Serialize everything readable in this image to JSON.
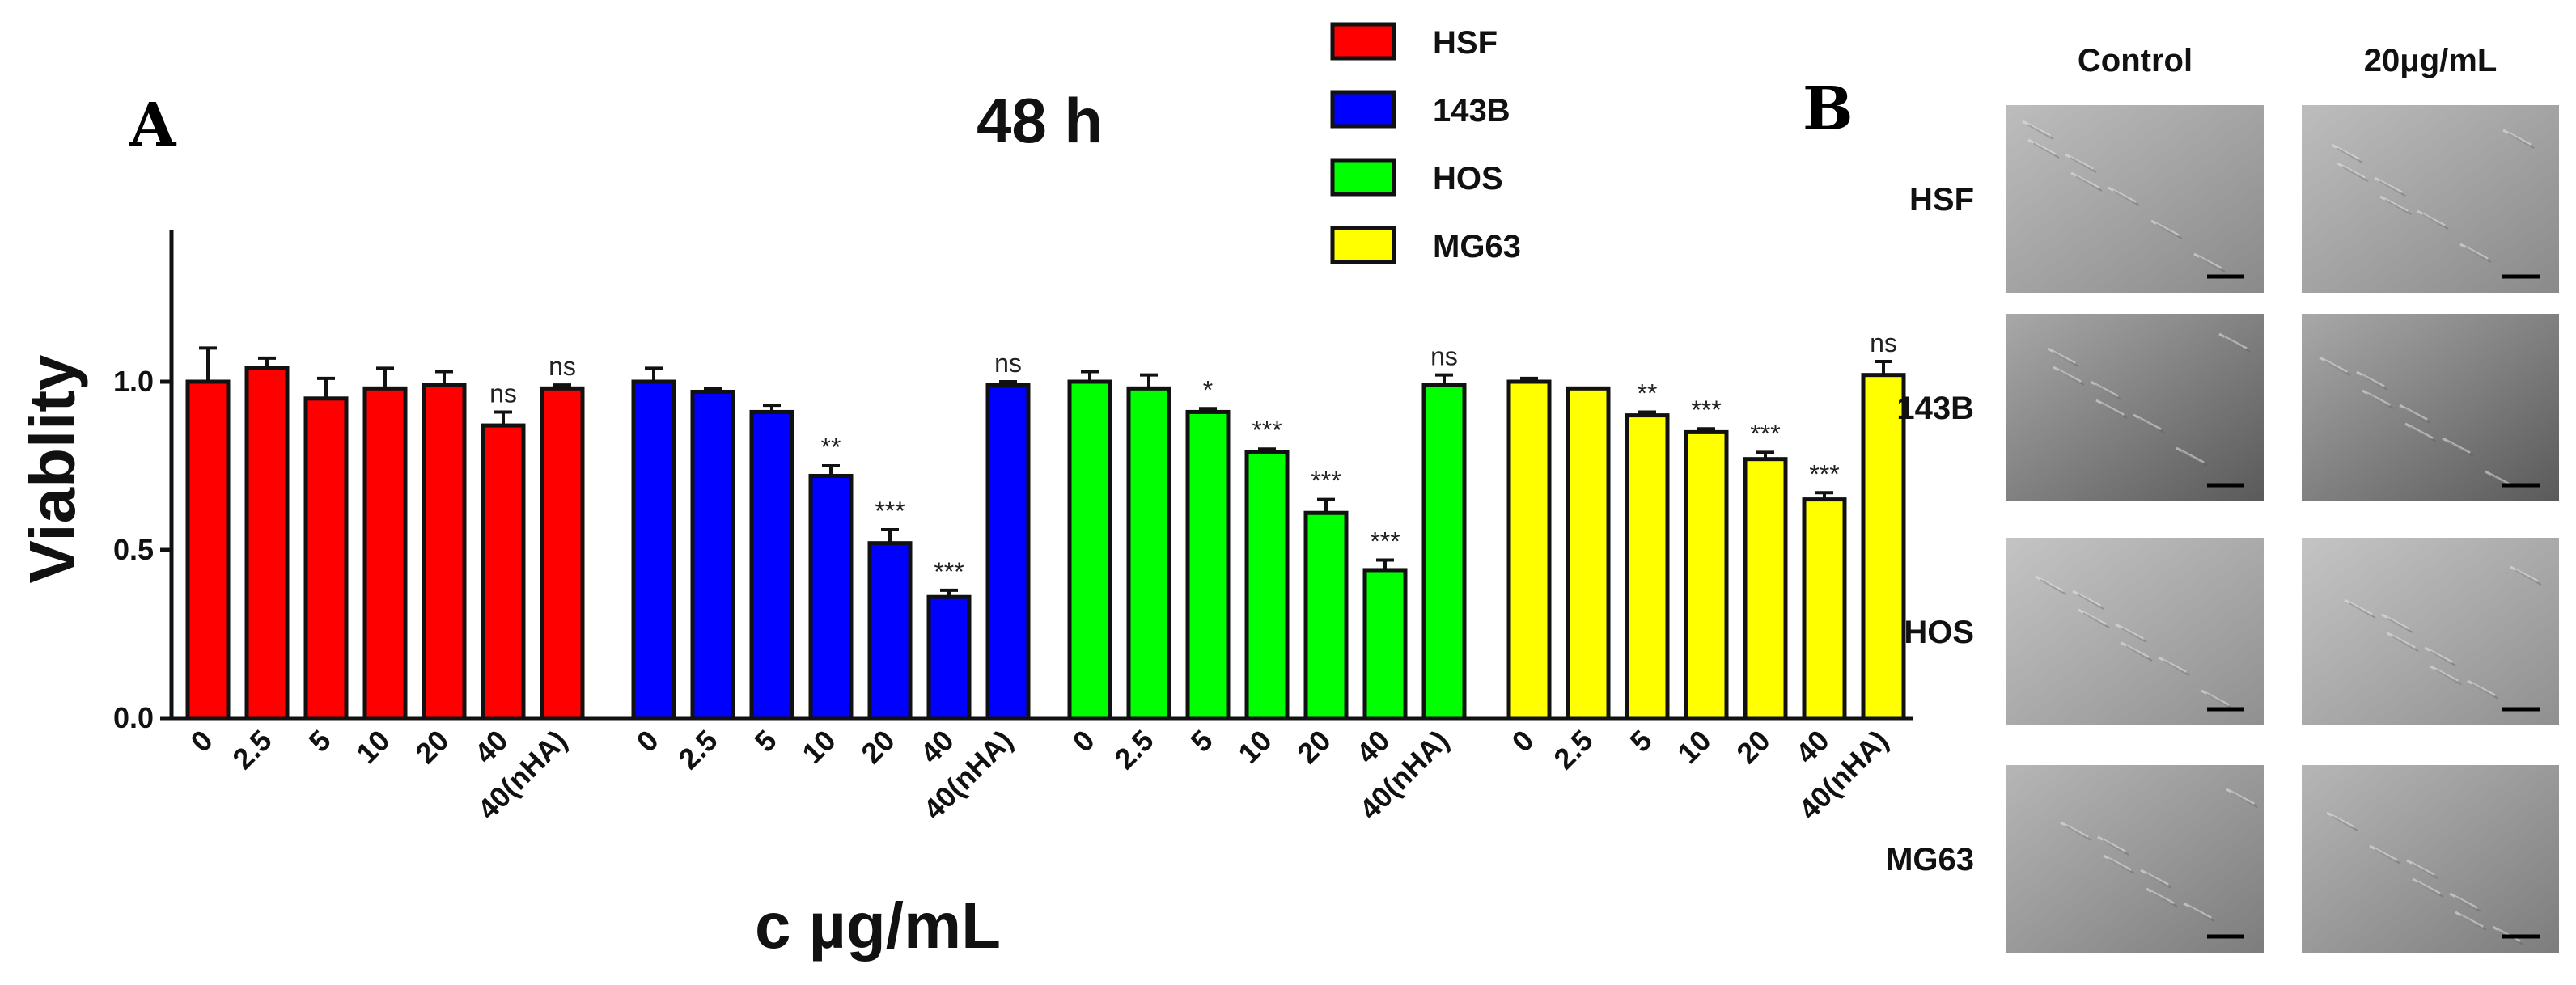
{
  "panel_a_letter": "A",
  "panel_b_letter": "B",
  "chart_data": {
    "type": "bar",
    "title": "48 h",
    "xlabel": "c µg/mL",
    "ylabel": "Viablity",
    "ylim": [
      0,
      1.45
    ],
    "yticks": [
      "0.0",
      "0.5",
      "1.0"
    ],
    "categories": [
      "0",
      "2.5",
      "5",
      "10",
      "20",
      "40",
      "40(nHA)"
    ],
    "series": [
      {
        "name": "HSF",
        "color": "#ff0000",
        "values": [
          1.0,
          1.04,
          0.95,
          0.98,
          0.99,
          0.87,
          0.98
        ],
        "errors": [
          0.1,
          0.03,
          0.06,
          0.06,
          0.04,
          0.04,
          0.01
        ],
        "sig": [
          "",
          "",
          "",
          "",
          "",
          "ns",
          "ns"
        ]
      },
      {
        "name": "143B",
        "color": "#0000ff",
        "values": [
          1.0,
          0.97,
          0.91,
          0.72,
          0.52,
          0.36,
          0.99
        ],
        "errors": [
          0.04,
          0.01,
          0.02,
          0.03,
          0.04,
          0.02,
          0.01
        ],
        "sig": [
          "",
          "",
          "",
          "**",
          "***",
          "***",
          "ns"
        ]
      },
      {
        "name": "HOS",
        "color": "#00ff00",
        "values": [
          1.0,
          0.98,
          0.91,
          0.79,
          0.61,
          0.44,
          0.99
        ],
        "errors": [
          0.03,
          0.04,
          0.01,
          0.01,
          0.04,
          0.03,
          0.03
        ],
        "sig": [
          "",
          "",
          "*",
          "***",
          "***",
          "***",
          "ns"
        ]
      },
      {
        "name": "MG63",
        "color": "#ffff00",
        "values": [
          1.0,
          0.98,
          0.9,
          0.85,
          0.77,
          0.65,
          1.02
        ],
        "errors": [
          0.01,
          0.0,
          0.01,
          0.01,
          0.02,
          0.02,
          0.04
        ],
        "sig": [
          "",
          "",
          "**",
          "***",
          "***",
          "***",
          "ns"
        ]
      }
    ],
    "legend_position": "top-center",
    "grid": false
  },
  "micrographs": {
    "columns": [
      "Control",
      "20μg/mL"
    ],
    "rows": [
      "HSF",
      "143B",
      "HOS",
      "MG63"
    ]
  }
}
